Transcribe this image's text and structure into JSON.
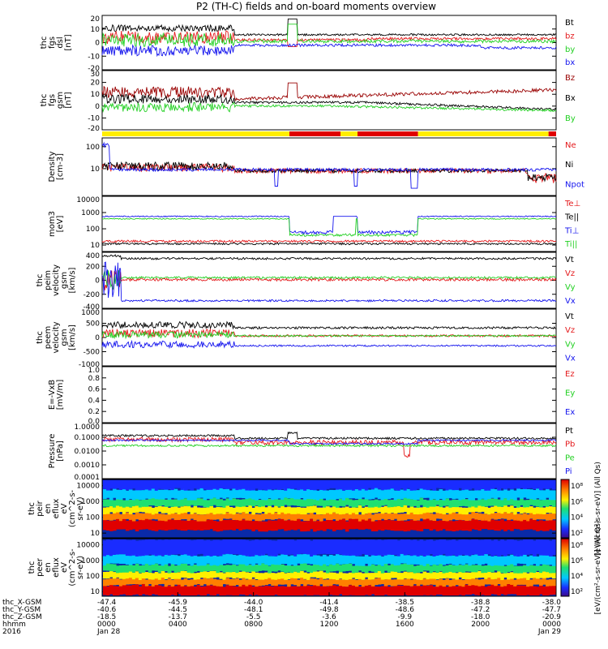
{
  "title": "P2 (TH-C) fields and on-board moments overview",
  "colors": {
    "black": "#000000",
    "red": "#e41a1c",
    "green": "#22d022",
    "blue": "#1515ee",
    "darkred": "#990000",
    "yellow": "#ffee00",
    "modebar_red": "#e00000"
  },
  "chart_data": [
    {
      "type": "line",
      "id": "fgs_dsl",
      "ylabel": [
        "thc",
        "fgs",
        "dsl",
        "[nT]"
      ],
      "ylim": [
        -20,
        20
      ],
      "yticks": [
        "20",
        "10",
        "0",
        "-10",
        "-20"
      ],
      "series": [
        {
          "name": "Bt",
          "color": "black",
          "shape": "bt"
        },
        {
          "name": "bz",
          "color": "red",
          "shape": "bz"
        },
        {
          "name": "by",
          "color": "green",
          "shape": "by"
        },
        {
          "name": "bx",
          "color": "blue",
          "shape": "bx"
        }
      ]
    },
    {
      "type": "line",
      "id": "fgs_gsm",
      "ylabel": [
        "thc",
        "fgs",
        "gsm",
        "[nT]"
      ],
      "ylim": [
        -20,
        30
      ],
      "yticks": [
        "30",
        "20",
        "10",
        "0",
        "-10",
        "-20"
      ],
      "series": [
        {
          "name": "Bz",
          "color": "darkred",
          "shape": "gbz"
        },
        {
          "name": "Bx",
          "color": "black",
          "shape": "gbx"
        },
        {
          "name": "By",
          "color": "green",
          "shape": "gby"
        }
      ]
    },
    {
      "type": "modebar",
      "id": "mode",
      "segments": [
        {
          "start_hour": 0,
          "end_hour": 9.9,
          "color": "yellow"
        },
        {
          "start_hour": 9.9,
          "end_hour": 12.6,
          "color": "modebar_red"
        },
        {
          "start_hour": 12.6,
          "end_hour": 13.5,
          "color": "yellow"
        },
        {
          "start_hour": 13.5,
          "end_hour": 16.7,
          "color": "modebar_red"
        },
        {
          "start_hour": 16.7,
          "end_hour": 23.6,
          "color": "yellow"
        },
        {
          "start_hour": 23.6,
          "end_hour": 24,
          "color": "modebar_red"
        }
      ]
    },
    {
      "type": "line",
      "id": "density",
      "log": true,
      "ylabel": [
        "Density",
        "[cm-3]"
      ],
      "ylim": [
        0.6,
        250
      ],
      "yticks": [
        "100",
        "10"
      ],
      "ytick_values": [
        100,
        10
      ],
      "series": [
        {
          "name": "Ne",
          "color": "red",
          "shape": "ne"
        },
        {
          "name": "Ni",
          "color": "black",
          "shape": "ni"
        },
        {
          "name": "Npot",
          "color": "blue",
          "shape": "npot"
        }
      ]
    },
    {
      "type": "line",
      "id": "temp",
      "log": true,
      "ylabel": [
        "mom3",
        "[eV]"
      ],
      "ylim": [
        4,
        10000
      ],
      "yticks": [
        "10000",
        "1000",
        "100",
        "10"
      ],
      "ytick_values": [
        10000,
        1000,
        100,
        10
      ],
      "series": [
        {
          "name": "Te⊥",
          "color": "red",
          "shape": "teperp"
        },
        {
          "name": "Te||",
          "color": "black",
          "shape": "tepar"
        },
        {
          "name": "Ti⊥",
          "color": "blue",
          "shape": "tiperp"
        },
        {
          "name": "Ti||",
          "color": "green",
          "shape": "tipar"
        }
      ]
    },
    {
      "type": "line",
      "id": "peim",
      "ylabel": [
        "thc",
        "peim",
        "velocity",
        "gsm",
        "[km/s]"
      ],
      "ylim": [
        -400,
        400
      ],
      "yticks": [
        "400",
        "200",
        "0",
        "-200",
        "-400"
      ],
      "series": [
        {
          "name": "Vt",
          "color": "black",
          "shape": "ivt"
        },
        {
          "name": "Vz",
          "color": "red",
          "shape": "ivz"
        },
        {
          "name": "Vy",
          "color": "green",
          "shape": "ivy"
        },
        {
          "name": "Vx",
          "color": "blue",
          "shape": "ivx"
        }
      ]
    },
    {
      "type": "line",
      "id": "peem",
      "ylabel": [
        "thc",
        "peem",
        "velocity",
        "gsm",
        "[km/s]"
      ],
      "ylim": [
        -1000,
        1000
      ],
      "yticks": [
        "1000",
        "500",
        "0",
        "-500",
        "-1000"
      ],
      "series": [
        {
          "name": "Vt",
          "color": "black",
          "shape": "evt"
        },
        {
          "name": "Vz",
          "color": "red",
          "shape": "evz"
        },
        {
          "name": "Vy",
          "color": "green",
          "shape": "evy"
        },
        {
          "name": "Vx",
          "color": "blue",
          "shape": "evx"
        }
      ]
    },
    {
      "type": "line",
      "id": "efield",
      "ylabel": [
        "E=-VxB",
        "[mV/m]"
      ],
      "ylim": [
        0,
        1
      ],
      "yticks": [
        "1.0",
        "0.8",
        "0.6",
        "0.4",
        "0.2",
        "0.0"
      ],
      "series": [
        {
          "name": "Ez",
          "color": "red",
          "shape": "none"
        },
        {
          "name": "Ey",
          "color": "green",
          "shape": "none"
        },
        {
          "name": "Ex",
          "color": "blue",
          "shape": "none"
        }
      ]
    },
    {
      "type": "line",
      "id": "pressure",
      "log": true,
      "ylabel": [
        "Pressure",
        "[nPa]"
      ],
      "ylim": [
        0.0001,
        1
      ],
      "yticks": [
        "1.0000",
        "0.1000",
        "0.0100",
        "0.0010",
        "0.0001"
      ],
      "ytick_values": [
        1,
        0.1,
        0.01,
        0.001,
        0.0001
      ],
      "series": [
        {
          "name": "Pt",
          "color": "black",
          "shape": "pt"
        },
        {
          "name": "Pb",
          "color": "red",
          "shape": "pb"
        },
        {
          "name": "Pe",
          "color": "green",
          "shape": "pe"
        },
        {
          "name": "Pi",
          "color": "blue",
          "shape": "pi"
        }
      ]
    },
    {
      "type": "heatmap",
      "id": "peir",
      "log": true,
      "ylabel": [
        "thc",
        "peir",
        "en",
        "eflux",
        "eV",
        "(cm^2-s-",
        "sr-eV)"
      ],
      "ylim": [
        5,
        25000
      ],
      "yticks": [
        "10000",
        "1000",
        "100",
        "10"
      ],
      "ytick_values": [
        10000,
        1000,
        100,
        10
      ],
      "colorbar": {
        "ticks": [
          "10⁸",
          "10⁶",
          "10⁴",
          "10²"
        ],
        "title": "[eV/(cm²-s-sr-eV)] (All Qs)"
      }
    },
    {
      "type": "heatmap",
      "id": "peer",
      "log": true,
      "ylabel": [
        "thc",
        "peer",
        "en",
        "eflux",
        "eV",
        "(cm^2-s-",
        "sr-eV)"
      ],
      "ylim": [
        5,
        25000
      ],
      "yticks": [
        "10000",
        "1000",
        "100",
        "10"
      ],
      "ytick_values": [
        10000,
        1000,
        100,
        10
      ],
      "colorbar": {
        "ticks": [
          "10⁸",
          "10⁶",
          "10⁴",
          "10²"
        ],
        "title": "[eV/(cm²-s-sr-eV)] (All Qs)"
      }
    }
  ],
  "xaxis": {
    "row_labels": [
      "thc_X-GSM",
      "thc_Y-GSM",
      "thc_Z-GSM",
      "hhmm",
      "2016"
    ],
    "ticks": [
      {
        "hour": 0,
        "x": "-47.4",
        "y": "-40.6",
        "z": "-18.5",
        "hhmm": "0000",
        "date": "Jan 28"
      },
      {
        "hour": 4,
        "x": "-45.9",
        "y": "-44.5",
        "z": "-13.7",
        "hhmm": "0400",
        "date": ""
      },
      {
        "hour": 8,
        "x": "-44.0",
        "y": "-48.1",
        "z": "-5.5",
        "hhmm": "0800",
        "date": ""
      },
      {
        "hour": 12,
        "x": "-41.4",
        "y": "-49.8",
        "z": "-3.6",
        "hhmm": "1200",
        "date": ""
      },
      {
        "hour": 16,
        "x": "-38.5",
        "y": "-48.6",
        "z": "-9.9",
        "hhmm": "1600",
        "date": ""
      },
      {
        "hour": 20,
        "x": "-38.8",
        "y": "-47.2",
        "z": "-18.0",
        "hhmm": "2000",
        "date": ""
      },
      {
        "hour": 24,
        "x": "-38.0",
        "y": "-47.7",
        "z": "-20.9",
        "hhmm": "0000",
        "date": "Jan 29"
      }
    ]
  }
}
